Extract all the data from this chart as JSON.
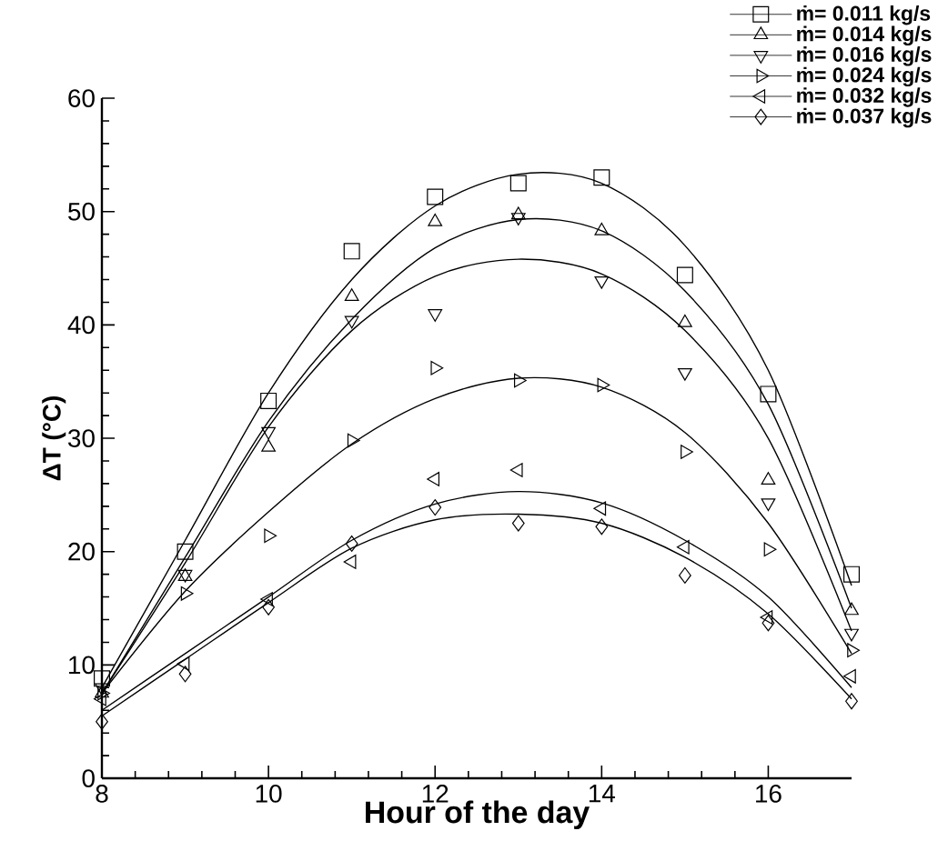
{
  "chart_data": {
    "type": "scatter",
    "xlabel": "Hour of the day",
    "ylabel": "ΔT (°C)",
    "xlim": [
      8,
      17
    ],
    "ylim": [
      0,
      60
    ],
    "xticks": [
      8,
      10,
      12,
      14,
      16
    ],
    "yticks": [
      0,
      10,
      20,
      30,
      40,
      50,
      60
    ],
    "grid": false,
    "legend": "top right",
    "series": [
      {
        "name": "ṁ= 0.011 kg/s",
        "color": "#000000",
        "marker": "square",
        "x": [
          8,
          9,
          10,
          11,
          12,
          13,
          14,
          15,
          16,
          17
        ],
        "values": [
          8.8,
          20.0,
          33.3,
          46.5,
          51.3,
          52.5,
          53.0,
          44.4,
          33.9,
          18.0
        ]
      },
      {
        "name": "ṁ= 0.014 kg/s",
        "color": "#000000",
        "marker": "triangle",
        "x": [
          8,
          9,
          10,
          11,
          12,
          13,
          14,
          15,
          16,
          17
        ],
        "values": [
          7.5,
          17.8,
          29.2,
          42.5,
          49.1,
          49.7,
          48.3,
          40.2,
          26.3,
          14.8
        ]
      },
      {
        "name": "ṁ= 0.016 kg/s",
        "color": "#000000",
        "marker": "triangle-down",
        "x": [
          8,
          9,
          10,
          11,
          12,
          13,
          14,
          15,
          16,
          17
        ],
        "values": [
          8.0,
          18.0,
          30.6,
          40.4,
          41.0,
          49.5,
          43.9,
          35.8,
          24.3,
          12.8
        ]
      },
      {
        "name": "ṁ= 0.024 kg/s",
        "color": "#000000",
        "marker": "triangle-right",
        "x": [
          8,
          9,
          10,
          11,
          12,
          13,
          14,
          15,
          16,
          17
        ],
        "values": [
          7.5,
          16.3,
          21.4,
          29.8,
          36.2,
          35.1,
          34.7,
          28.8,
          20.2,
          11.3
        ]
      },
      {
        "name": "ṁ= 0.032 kg/s",
        "color": "#000000",
        "marker": "triangle-left",
        "x": [
          8,
          9,
          10,
          11,
          12,
          13,
          14,
          15,
          16,
          17
        ],
        "values": [
          7.0,
          10.1,
          15.8,
          19.1,
          26.4,
          27.2,
          23.8,
          20.4,
          14.2,
          9.0
        ]
      },
      {
        "name": "ṁ= 0.037 kg/s",
        "color": "#000000",
        "marker": "diamond",
        "x": [
          8,
          9,
          10,
          11,
          12,
          13,
          14,
          15,
          16,
          17
        ],
        "values": [
          5.0,
          9.2,
          15.1,
          20.7,
          23.9,
          22.5,
          22.2,
          17.9,
          13.7,
          6.8
        ]
      },
      {
        "type": "line",
        "color": "#000000",
        "marker": "none",
        "x": [
          8,
          9,
          10,
          11,
          12,
          13,
          14,
          15,
          16,
          17
        ],
        "values": [
          8,
          21,
          34,
          44,
          50.5,
          53.3,
          52.5,
          47,
          36,
          17
        ]
      },
      {
        "type": "line",
        "color": "#000000",
        "marker": "none",
        "x": [
          8,
          9,
          10,
          11,
          12,
          13,
          14,
          15,
          16,
          17
        ],
        "values": [
          7.5,
          19.5,
          31.5,
          40.5,
          46.8,
          49.3,
          48.3,
          43,
          33,
          15
        ]
      },
      {
        "type": "line",
        "color": "#000000",
        "marker": "none",
        "x": [
          8,
          9,
          10,
          11,
          12,
          13,
          14,
          15,
          16,
          17
        ],
        "values": [
          7.5,
          19,
          31,
          39.5,
          44.3,
          45.8,
          44.5,
          39.5,
          30,
          13
        ]
      },
      {
        "type": "line",
        "color": "#000000",
        "marker": "none",
        "x": [
          8,
          9,
          10,
          11,
          12,
          13,
          14,
          15,
          16,
          17
        ],
        "values": [
          7.5,
          16.5,
          23.5,
          29.5,
          33.5,
          35.3,
          34.5,
          30.5,
          22.5,
          11
        ]
      },
      {
        "type": "line",
        "color": "#000000",
        "marker": "none",
        "x": [
          8,
          9,
          10,
          11,
          12,
          13,
          14,
          15,
          16,
          17
        ],
        "values": [
          6,
          11,
          16,
          21,
          24.2,
          25.3,
          24.3,
          21,
          16,
          8
        ]
      },
      {
        "type": "line",
        "color": "#000000",
        "marker": "none",
        "x": [
          8,
          9,
          10,
          11,
          12,
          13,
          14,
          15,
          16,
          17
        ],
        "values": [
          5.5,
          10.5,
          15.5,
          20.3,
          22.8,
          23.3,
          22.5,
          19.5,
          14.5,
          7
        ]
      }
    ]
  }
}
